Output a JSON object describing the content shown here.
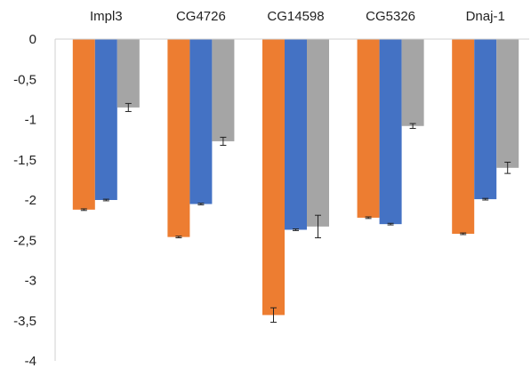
{
  "chart_data": {
    "type": "bar",
    "title": "",
    "xlabel": "",
    "ylabel": "",
    "categories": [
      "Impl3",
      "CG4726",
      "CG14598",
      "CG5326",
      "Dnaj-1"
    ],
    "ylim": [
      -4,
      0
    ],
    "yticks": [
      0,
      -0.5,
      -1,
      -1.5,
      -2,
      -2.5,
      -3,
      -3.5,
      -4
    ],
    "ytick_labels": [
      "0",
      "-0,5",
      "-1",
      "-1,5",
      "-2",
      "-2,5",
      "-3",
      "-3,5",
      "-4"
    ],
    "x_axis_position": "top",
    "grid": false,
    "legend": "none",
    "series": [
      {
        "color": "#ED7D31",
        "values": [
          -2.12,
          -2.46,
          -3.43,
          -2.22,
          -2.42
        ],
        "errors": [
          0.01,
          0.01,
          0.09,
          0.01,
          0.01
        ]
      },
      {
        "color": "#4472C4",
        "values": [
          -2.0,
          -2.05,
          -2.37,
          -2.3,
          -1.99
        ],
        "errors": [
          0.01,
          0.01,
          0.01,
          0.01,
          0.01
        ]
      },
      {
        "color": "#A5A5A5",
        "values": [
          -0.85,
          -1.27,
          -2.33,
          -1.08,
          -1.6
        ],
        "errors": [
          0.05,
          0.05,
          0.14,
          0.03,
          0.07
        ]
      }
    ]
  }
}
